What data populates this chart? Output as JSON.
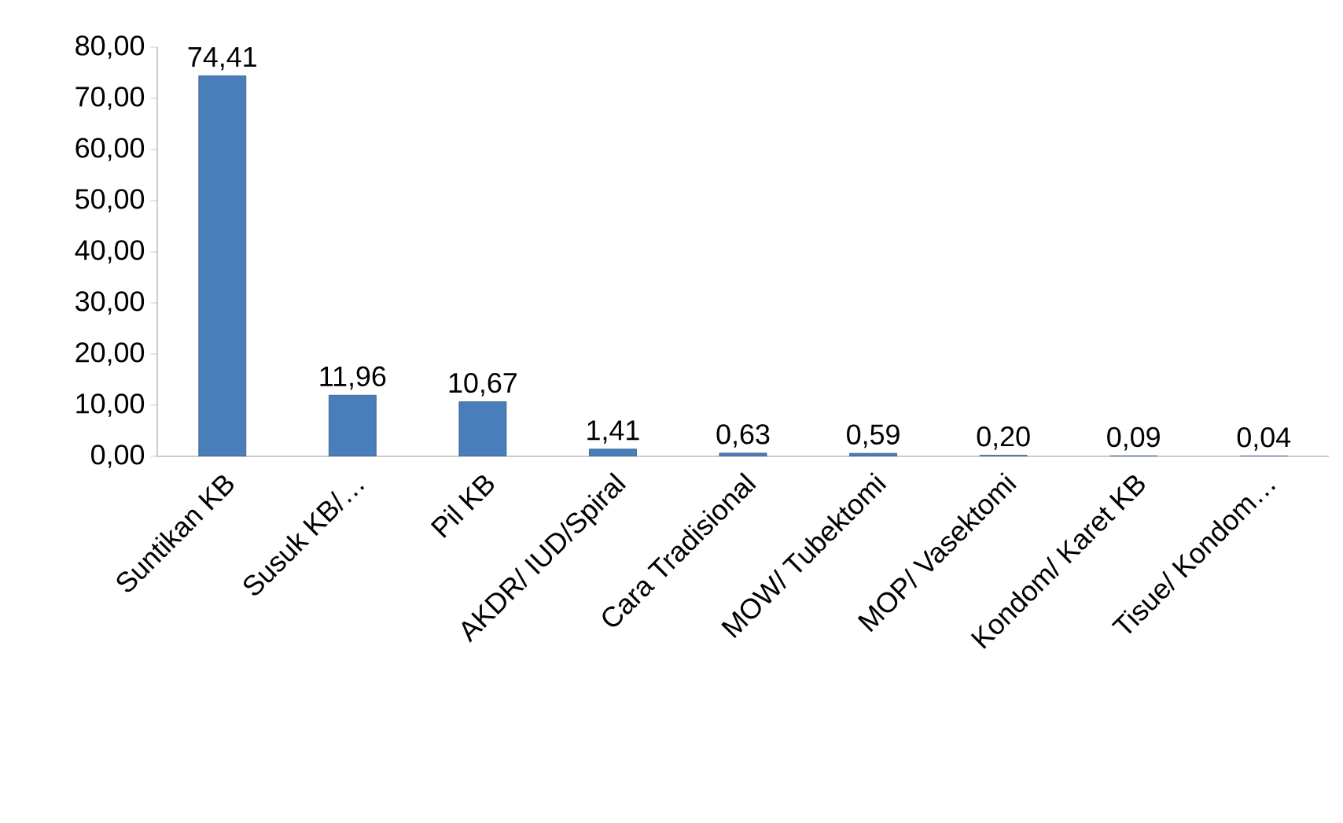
{
  "chart_data": {
    "type": "bar",
    "categories": [
      "Suntikan KB",
      "Susuk KB/…",
      "Pil KB",
      "AKDR/ IUD/Spiral",
      "Cara Tradisional",
      "MOW/ Tubektomi",
      "MOP/ Vasektomi",
      "Kondom/ Karet KB",
      "Tisue/ Kondom…"
    ],
    "values": [
      74.41,
      11.96,
      10.67,
      1.41,
      0.63,
      0.59,
      0.2,
      0.09,
      0.04
    ],
    "value_labels": [
      "74,41",
      "11,96",
      "10,67",
      "1,41",
      "0,63",
      "0,59",
      "0,20",
      "0,09",
      "0,04"
    ],
    "color": "#4a7ebb",
    "ylim": [
      0,
      80
    ],
    "yticks": [
      {
        "value": 0,
        "label": "0,00"
      },
      {
        "value": 10,
        "label": "10,00"
      },
      {
        "value": 20,
        "label": "20,00"
      },
      {
        "value": 30,
        "label": "30,00"
      },
      {
        "value": 40,
        "label": "40,00"
      },
      {
        "value": 50,
        "label": "50,00"
      },
      {
        "value": 60,
        "label": "60,00"
      },
      {
        "value": 70,
        "label": "70,00"
      },
      {
        "value": 80,
        "label": "80,00"
      }
    ]
  }
}
